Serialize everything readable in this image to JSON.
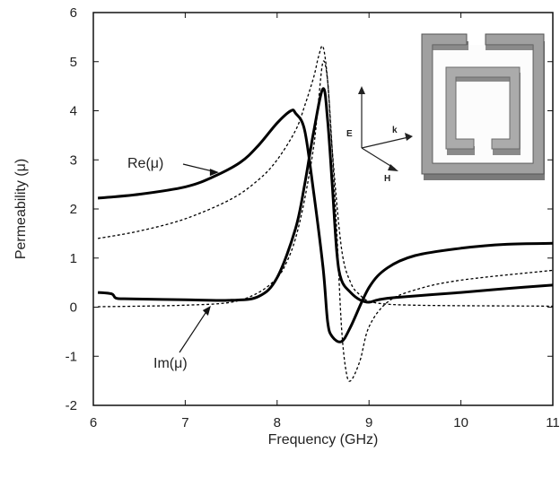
{
  "chart_data": {
    "type": "line",
    "xlabel": "Frequency (GHz)",
    "ylabel": "Permeability (μ)",
    "xlim": [
      6,
      11
    ],
    "ylim": [
      -2,
      6
    ],
    "xticks": [
      "6",
      "7",
      "8",
      "9",
      "10",
      "11"
    ],
    "yticks": [
      "-2",
      "-1",
      "0",
      "1",
      "2",
      "3",
      "4",
      "5",
      "6"
    ],
    "grid": false,
    "legend": "none",
    "annotations": [
      {
        "text": "Re(μ)",
        "target_series": "s1",
        "arrow_tip": [
          7.2,
          2.6
        ]
      },
      {
        "text": "Im(μ)",
        "target_series": "s2",
        "arrow_tip": [
          7.2,
          0.1
        ]
      }
    ],
    "inset": {
      "description_labels": [
        "E",
        "k",
        "H"
      ]
    },
    "series": [
      {
        "id": "s1",
        "style": "solid-thick",
        "color": "#000000",
        "x": [
          6.05,
          6.5,
          7.0,
          7.3,
          7.6,
          7.8,
          8.0,
          8.15,
          8.2,
          8.3,
          8.4,
          8.5,
          8.55,
          8.6,
          8.7,
          8.8,
          9.0,
          9.2,
          9.5,
          10.0,
          10.5,
          11.0
        ],
        "y": [
          2.22,
          2.3,
          2.45,
          2.65,
          2.95,
          3.3,
          3.75,
          4.0,
          3.95,
          3.6,
          2.3,
          0.8,
          -0.3,
          -0.6,
          -0.7,
          -0.4,
          0.4,
          0.8,
          1.05,
          1.2,
          1.28,
          1.3
        ]
      },
      {
        "id": "s2",
        "style": "solid-thick",
        "color": "#000000",
        "x": [
          6.05,
          6.2,
          6.25,
          6.4,
          7.0,
          7.5,
          7.8,
          8.0,
          8.2,
          8.3,
          8.4,
          8.5,
          8.55,
          8.6,
          8.65,
          8.7,
          8.8,
          8.9,
          9.0,
          9.1,
          9.3,
          10.0,
          10.5,
          11.0
        ],
        "y": [
          0.3,
          0.27,
          0.18,
          0.17,
          0.15,
          0.14,
          0.22,
          0.6,
          1.6,
          2.5,
          3.6,
          4.45,
          3.8,
          2.5,
          1.1,
          0.55,
          0.3,
          0.15,
          0.1,
          0.15,
          0.2,
          0.3,
          0.38,
          0.45
        ]
      },
      {
        "id": "s3",
        "style": "dashed",
        "color": "#000000",
        "x": [
          6.05,
          6.5,
          7.0,
          7.5,
          7.8,
          8.0,
          8.2,
          8.3,
          8.4,
          8.45,
          8.5,
          8.55,
          8.6,
          8.65,
          8.7,
          8.75,
          8.8,
          8.9,
          9.0,
          9.2,
          9.5,
          10.0,
          11.0
        ],
        "y": [
          1.4,
          1.55,
          1.8,
          2.2,
          2.6,
          3.0,
          3.6,
          4.1,
          4.7,
          5.1,
          5.3,
          4.6,
          3.2,
          1.5,
          -0.4,
          -1.3,
          -1.5,
          -1.1,
          -0.4,
          0.1,
          0.35,
          0.55,
          0.75
        ]
      },
      {
        "id": "s4",
        "style": "dashed",
        "color": "#000000",
        "x": [
          6.05,
          6.5,
          7.0,
          7.5,
          7.8,
          8.0,
          8.1,
          8.2,
          8.3,
          8.4,
          8.45,
          8.5,
          8.55,
          8.6,
          8.7,
          8.8,
          8.9,
          9.0,
          9.2,
          9.5,
          10.0,
          11.0
        ],
        "y": [
          0.01,
          0.02,
          0.04,
          0.1,
          0.3,
          0.6,
          0.9,
          1.4,
          2.2,
          3.3,
          4.2,
          5.0,
          4.6,
          3.2,
          1.2,
          0.5,
          0.25,
          0.12,
          0.06,
          0.04,
          0.03,
          0.02
        ]
      }
    ]
  }
}
